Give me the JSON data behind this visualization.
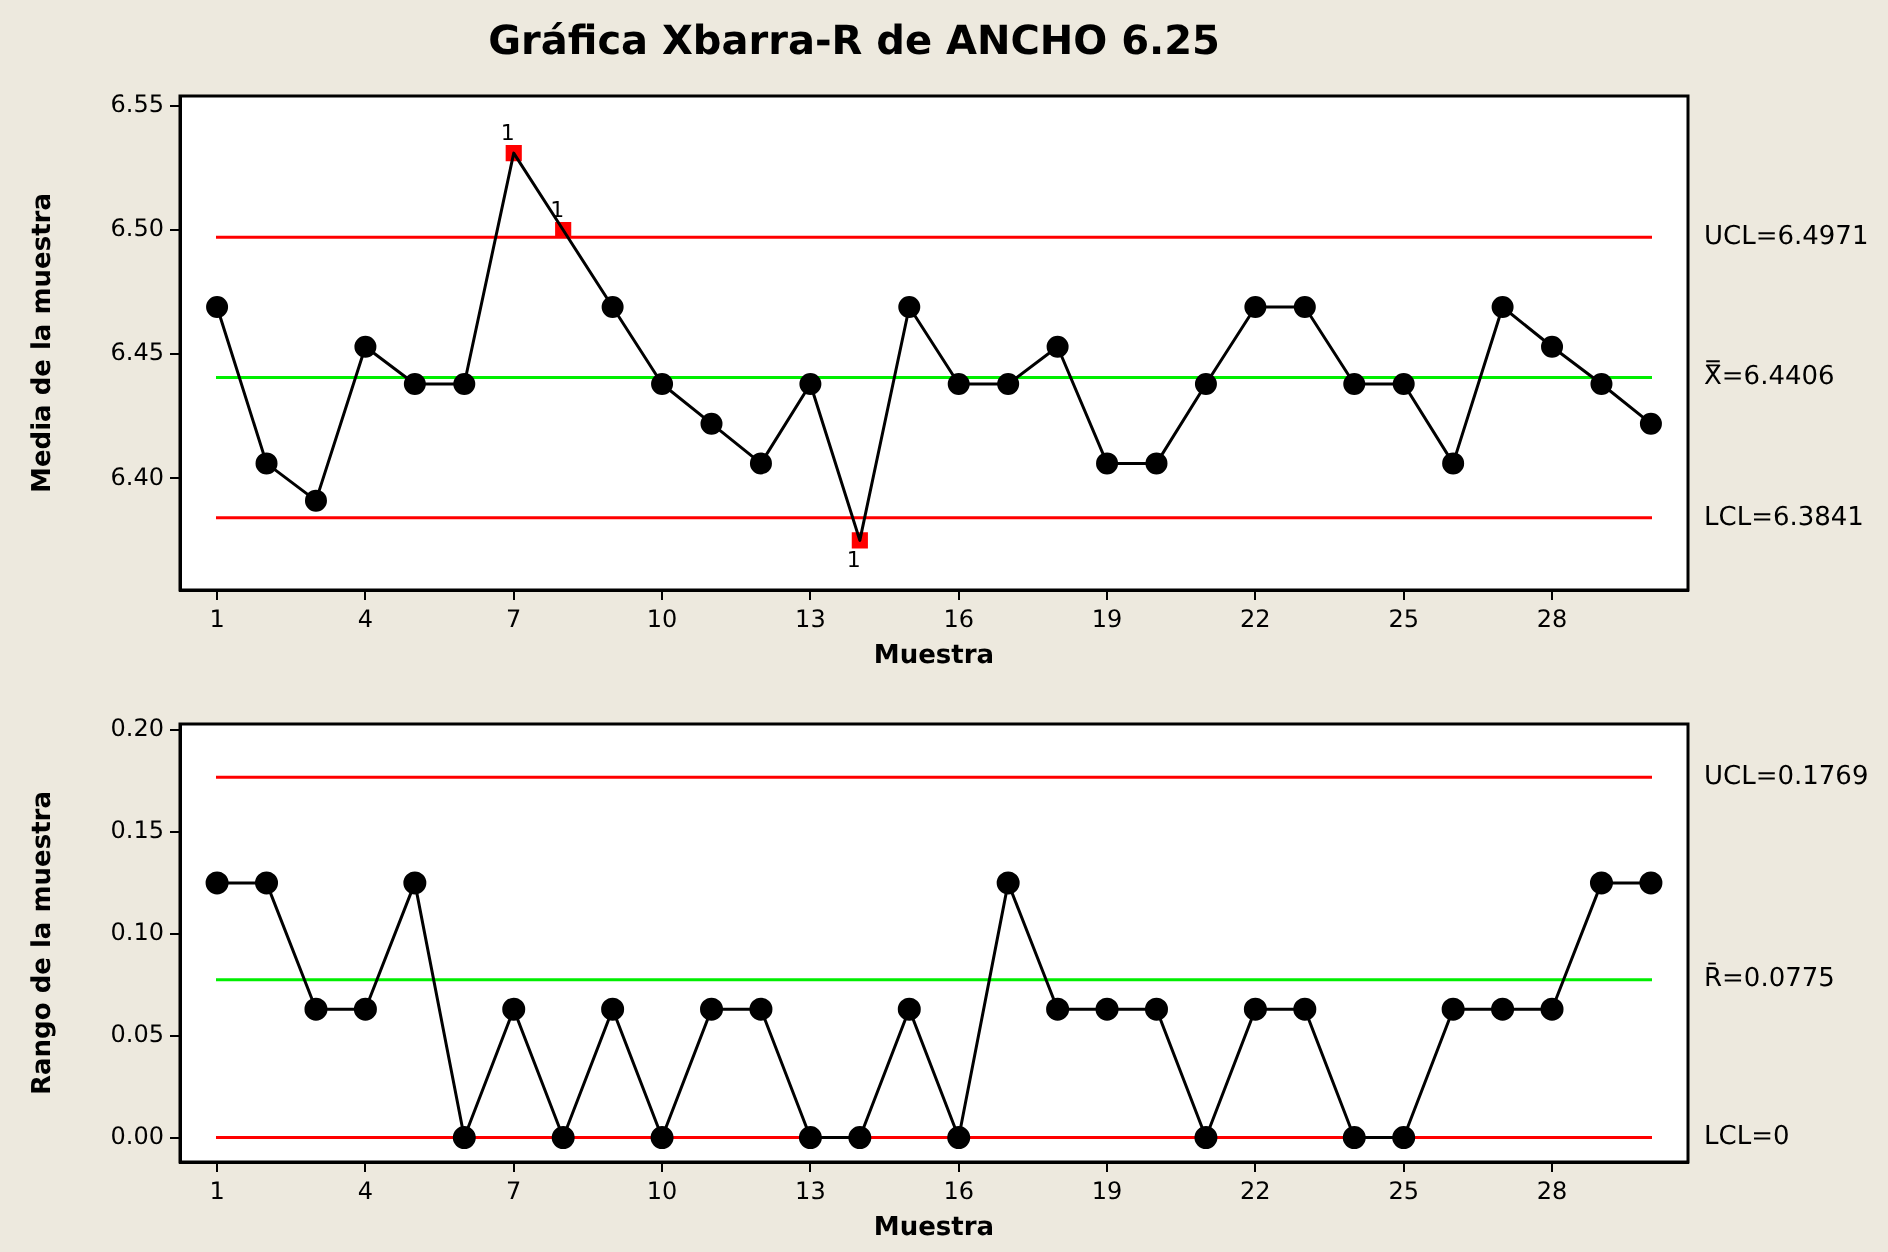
{
  "chart_data": [
    {
      "type": "line",
      "title": "Gráfica Xbarra-R de ANCHO 6.25",
      "xlabel": "Muestra",
      "ylabel": "Media de la muestra",
      "x": [
        1,
        2,
        3,
        4,
        5,
        6,
        7,
        8,
        9,
        10,
        11,
        12,
        13,
        14,
        15,
        16,
        17,
        18,
        19,
        20,
        21,
        22,
        23,
        24,
        25,
        26,
        27,
        28,
        29,
        30
      ],
      "series": [
        {
          "type": "line",
          "marker": "none",
          "color": "#000000",
          "values": [
            6.469,
            6.406,
            6.391,
            6.453,
            6.438,
            6.438,
            6.531,
            6.5,
            6.469,
            6.438,
            6.422,
            6.406,
            6.438,
            6.375,
            6.469,
            6.438,
            6.438,
            6.453,
            6.406,
            6.406,
            6.438,
            6.469,
            6.469,
            6.438,
            6.438,
            6.406,
            6.469,
            6.453,
            6.438,
            6.422
          ]
        },
        {
          "type": "scatter",
          "marker": "circle",
          "color": "#000000",
          "values": [
            6.469,
            6.406,
            6.391,
            6.453,
            6.438,
            6.438,
            null,
            null,
            6.469,
            6.438,
            6.422,
            6.406,
            6.438,
            null,
            6.469,
            6.438,
            6.438,
            6.453,
            6.406,
            6.406,
            6.438,
            6.469,
            6.469,
            6.438,
            6.438,
            6.406,
            6.469,
            6.453,
            6.438,
            6.422
          ]
        },
        {
          "type": "scatter",
          "marker": "square",
          "color": "#ff0000",
          "values": [
            null,
            null,
            null,
            null,
            null,
            null,
            6.531,
            6.5,
            null,
            null,
            null,
            null,
            null,
            6.375,
            null,
            null,
            null,
            null,
            null,
            null,
            null,
            null,
            null,
            null,
            null,
            null,
            null,
            null,
            null,
            null
          ]
        }
      ],
      "xlim": [
        0.25,
        30.75
      ],
      "xticks": [
        1,
        4,
        7,
        10,
        13,
        16,
        19,
        22,
        25,
        28
      ],
      "ylim": [
        6.355,
        6.554
      ],
      "yticks": [
        {
          "value": 6.4,
          "label": "6.40"
        },
        6.45,
        {
          "value": 6.5,
          "label": "6.50"
        },
        6.55
      ],
      "ref_lines": [
        {
          "axis": "y",
          "value": 6.4971,
          "label": "UCL=6.4971",
          "color": "#ff0000"
        },
        {
          "axis": "y",
          "value": 6.4406,
          "label": "X̿=6.4406",
          "color": "#00ee00"
        },
        {
          "axis": "y",
          "value": 6.3841,
          "label": "LCL=6.3841",
          "color": "#ff0000"
        }
      ],
      "annotations": [
        {
          "text": "1",
          "x": 7,
          "y": 6.531
        },
        {
          "text": "1",
          "x": 8,
          "y": 6.5
        },
        {
          "text": "1",
          "x": 14,
          "y": 6.375
        }
      ],
      "grid": false,
      "legend": false
    },
    {
      "type": "line",
      "xlabel": "Muestra",
      "ylabel": "Rango de la muestra",
      "x": [
        1,
        2,
        3,
        4,
        5,
        6,
        7,
        8,
        9,
        10,
        11,
        12,
        13,
        14,
        15,
        16,
        17,
        18,
        19,
        20,
        21,
        22,
        23,
        24,
        25,
        26,
        27,
        28,
        29,
        30
      ],
      "series": [
        {
          "type": "line",
          "marker": "circle",
          "color": "#000000",
          "values": [
            0.125,
            0.125,
            0.063,
            0.063,
            0.125,
            0,
            0.063,
            0,
            0.063,
            0,
            0.063,
            0.063,
            0,
            0,
            0.063,
            0,
            0.125,
            0.063,
            0.063,
            0.063,
            0,
            0.063,
            0.063,
            0,
            0,
            0.063,
            0.063,
            0.063,
            0.125,
            0.125
          ]
        }
      ],
      "xlim": [
        0.25,
        30.75
      ],
      "xticks": [
        1,
        4,
        7,
        10,
        13,
        16,
        19,
        22,
        25,
        28
      ],
      "ylim": [
        -0.012,
        0.203
      ],
      "yticks": [
        {
          "value": 0,
          "label": "0.00"
        },
        {
          "value": 0.05,
          "label": "0.05"
        },
        {
          "value": 0.1,
          "label": "0.10"
        },
        {
          "value": 0.15,
          "label": "0.15"
        },
        {
          "value": 0.2,
          "label": "0.20"
        }
      ],
      "ref_lines": [
        {
          "axis": "y",
          "value": 0.1769,
          "label": "UCL=0.1769",
          "color": "#ff0000"
        },
        {
          "axis": "y",
          "value": 0.0775,
          "label": "R̄=0.0775",
          "color": "#00ee00"
        },
        {
          "axis": "y",
          "value": 0,
          "label": "LCL=0",
          "color": "#ff0000"
        }
      ],
      "grid": false,
      "legend": false
    }
  ]
}
